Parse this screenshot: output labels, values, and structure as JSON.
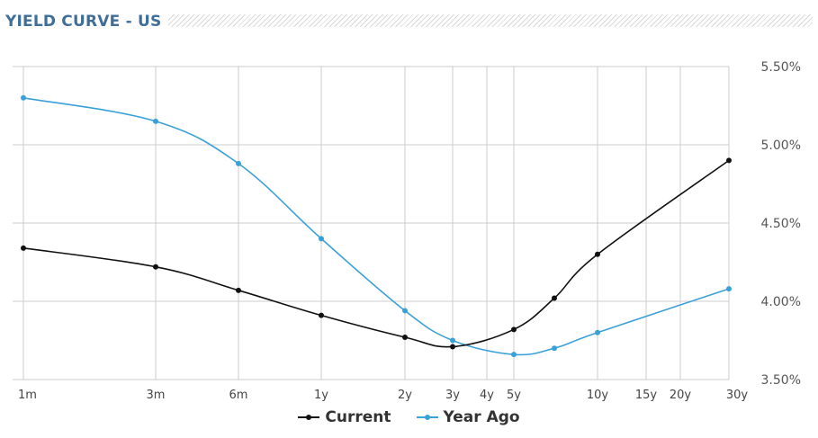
{
  "header": {
    "title": "YIELD CURVE - US"
  },
  "colors": {
    "current": "#111111",
    "year_ago": "#3aa0d8",
    "grid": "#cccccc",
    "title": "#3f6f98"
  },
  "chart_data": {
    "type": "line",
    "title": "YIELD CURVE - US",
    "x_categories": [
      "1m",
      "3m",
      "6m",
      "1y",
      "2y",
      "3y",
      "4y",
      "5y",
      "7y",
      "10y",
      "15y",
      "20y",
      "30y"
    ],
    "x_tick_labels": [
      "1m",
      "3m",
      "6m",
      "1y",
      "2y",
      "3y",
      "4y",
      "5y",
      "10y",
      "15y",
      "20y",
      "30y"
    ],
    "y_tick_labels": [
      "5.50%",
      "5.00%",
      "4.50%",
      "4.00%",
      "3.50%"
    ],
    "ylim": [
      3.5,
      5.5
    ],
    "y_axis_position": "right",
    "grid": true,
    "legend_position": "bottom-center",
    "series": [
      {
        "name": "Current",
        "color": "#111111",
        "points": [
          {
            "x": "1m",
            "y": 4.34
          },
          {
            "x": "3m",
            "y": 4.22
          },
          {
            "x": "6m",
            "y": 4.07
          },
          {
            "x": "1y",
            "y": 3.91
          },
          {
            "x": "2y",
            "y": 3.77
          },
          {
            "x": "3y",
            "y": 3.71
          },
          {
            "x": "5y",
            "y": 3.82
          },
          {
            "x": "7y",
            "y": 4.02
          },
          {
            "x": "10y",
            "y": 4.3
          },
          {
            "x": "30y",
            "y": 4.9
          }
        ]
      },
      {
        "name": "Year Ago",
        "color": "#3aa0d8",
        "points": [
          {
            "x": "1m",
            "y": 5.3
          },
          {
            "x": "3m",
            "y": 5.15
          },
          {
            "x": "6m",
            "y": 4.88
          },
          {
            "x": "1y",
            "y": 4.4
          },
          {
            "x": "2y",
            "y": 3.94
          },
          {
            "x": "3y",
            "y": 3.75
          },
          {
            "x": "5y",
            "y": 3.66
          },
          {
            "x": "7y",
            "y": 3.7
          },
          {
            "x": "10y",
            "y": 3.8
          },
          {
            "x": "30y",
            "y": 4.08
          }
        ]
      }
    ]
  }
}
